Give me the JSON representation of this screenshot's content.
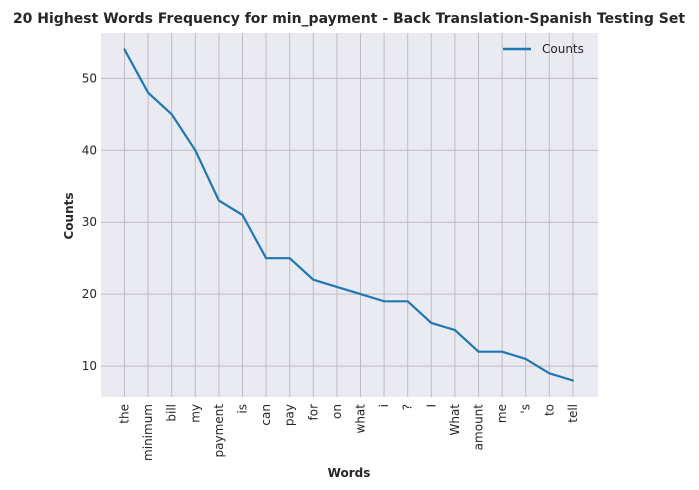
{
  "chart_data": {
    "type": "line",
    "title": "20 Highest Words Frequency for min_payment - Back Translation-Spanish Testing Set",
    "xlabel": "Words",
    "ylabel": "Counts",
    "categories": [
      "the",
      "minimum",
      "bill",
      "my",
      "payment",
      "is",
      "can",
      "pay",
      "for",
      "on",
      "what",
      "i",
      "?",
      "I",
      "What",
      "amount",
      "me",
      "'s",
      "to",
      "tell"
    ],
    "series": [
      {
        "name": "Counts",
        "values": [
          54,
          48,
          45,
          40,
          33,
          31,
          25,
          25,
          22,
          21,
          20,
          19,
          19,
          16,
          15,
          12,
          12,
          11,
          9,
          8
        ],
        "color": "#1f77b4"
      }
    ],
    "yticks": [
      10,
      20,
      30,
      40,
      50
    ],
    "ylim": [
      5.7,
      56.3
    ],
    "grid": true,
    "legend_position": "upper right",
    "background": "#eaeaf2",
    "grid_color": "#bdbdc2"
  }
}
